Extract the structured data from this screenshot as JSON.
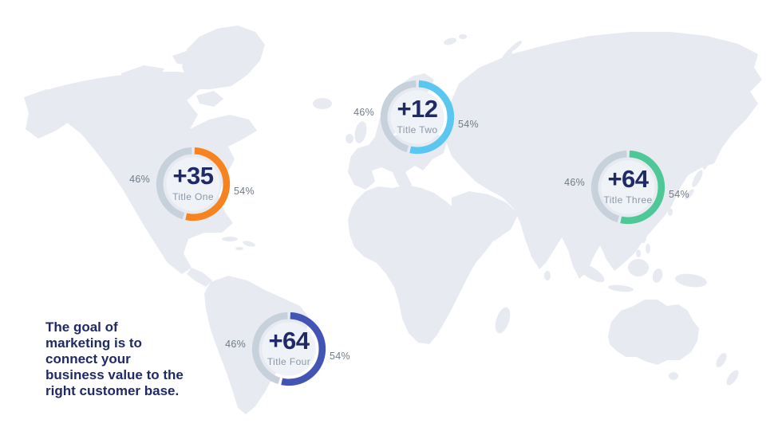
{
  "slide": {
    "description": "The goal of\nmarketing is to\nconnect your\nbusiness value to the\nright customer base.",
    "background": "world map silhouette"
  },
  "theme": {
    "map_color": "#E7EAF1",
    "disc_color": "#EFF2F7",
    "remainder_color": "#C6D1DC",
    "navy": "#1F2A66",
    "title_gray": "#8C98A6",
    "percent_gray": "#6F7B86",
    "accent_orange": "#F6831F",
    "accent_sky": "#59C7F0",
    "accent_green": "#4EC897",
    "accent_indigo": "#4254B5"
  },
  "chart_data": [
    {
      "type": "pie",
      "donut": true,
      "title": "Title One",
      "center_label": "+35",
      "start_angle": "12 o'clock",
      "direction": "clockwise",
      "legend_position": "none",
      "left_label": "46%",
      "right_label": "54%",
      "slices": [
        {
          "label": "54%",
          "value": 54,
          "color": "#F6831F"
        },
        {
          "label": "46%",
          "value": 46,
          "color": "#C6D1DC"
        }
      ]
    },
    {
      "type": "pie",
      "donut": true,
      "title": "Title Two",
      "center_label": "+12",
      "start_angle": "12 o'clock",
      "direction": "clockwise",
      "legend_position": "none",
      "left_label": "46%",
      "right_label": "54%",
      "slices": [
        {
          "label": "54%",
          "value": 54,
          "color": "#59C7F0"
        },
        {
          "label": "46%",
          "value": 46,
          "color": "#C6D1DC"
        }
      ]
    },
    {
      "type": "pie",
      "donut": true,
      "title": "Title Three",
      "center_label": "+64",
      "start_angle": "12 o'clock",
      "direction": "clockwise",
      "legend_position": "none",
      "left_label": "46%",
      "right_label": "54%",
      "slices": [
        {
          "label": "54%",
          "value": 54,
          "color": "#4EC897"
        },
        {
          "label": "46%",
          "value": 46,
          "color": "#C6D1DC"
        }
      ]
    },
    {
      "type": "pie",
      "donut": true,
      "title": "Title Four",
      "center_label": "+64",
      "start_angle": "12 o'clock",
      "direction": "clockwise",
      "legend_position": "none",
      "left_label": "46%",
      "right_label": "54%",
      "slices": [
        {
          "label": "54%",
          "value": 54,
          "color": "#4254B5"
        },
        {
          "label": "46%",
          "value": 46,
          "color": "#C6D1DC"
        }
      ]
    }
  ]
}
